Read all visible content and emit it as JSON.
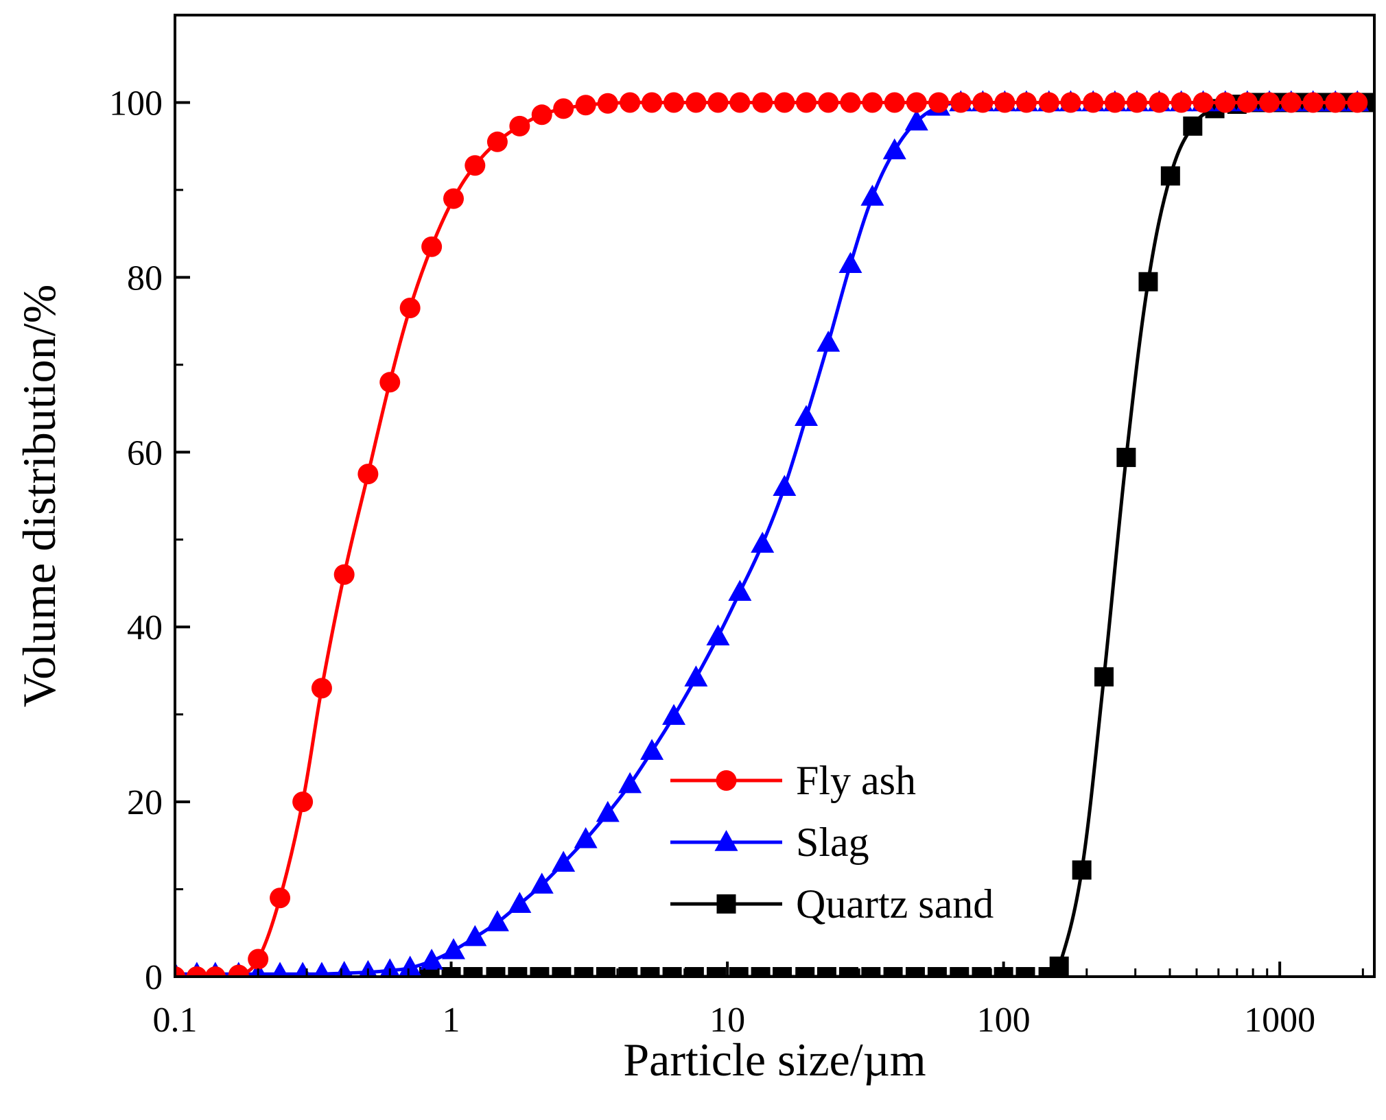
{
  "chart_data": {
    "type": "line",
    "title": "",
    "xlabel": "Particle size/µm",
    "ylabel": "Volume distribution/%",
    "xscale": "log",
    "xlim": [
      0.1,
      2200
    ],
    "ylim": [
      0,
      110
    ],
    "x_ticks": [
      0.1,
      1,
      10,
      100,
      1000
    ],
    "x_tick_labels": [
      "0.1",
      "1",
      "10",
      "100",
      "1000"
    ],
    "y_ticks": [
      0,
      20,
      40,
      60,
      80,
      100
    ],
    "y_tick_labels": [
      "0",
      "20",
      "40",
      "60",
      "80",
      "100"
    ],
    "legend_position": "lower-center",
    "series": [
      {
        "name": "Fly ash",
        "color": "#ff0000",
        "marker": "circle",
        "points": [
          [
            0.1,
            0
          ],
          [
            0.12,
            0
          ],
          [
            0.14,
            0
          ],
          [
            0.17,
            0.2
          ],
          [
            0.2,
            2
          ],
          [
            0.24,
            9
          ],
          [
            0.29,
            20
          ],
          [
            0.34,
            33
          ],
          [
            0.41,
            46
          ],
          [
            0.5,
            57.5
          ],
          [
            0.6,
            68
          ],
          [
            0.71,
            76.5
          ],
          [
            0.85,
            83.5
          ],
          [
            1.02,
            89
          ],
          [
            1.22,
            92.8
          ],
          [
            1.47,
            95.5
          ],
          [
            1.77,
            97.3
          ],
          [
            2.13,
            98.6
          ],
          [
            2.55,
            99.3
          ],
          [
            3.07,
            99.7
          ],
          [
            3.69,
            99.9
          ],
          [
            4.44,
            100
          ],
          [
            5.33,
            100
          ],
          [
            6.4,
            100
          ],
          [
            7.7,
            100
          ],
          [
            9.25,
            100
          ],
          [
            11.1,
            100
          ],
          [
            13.4,
            100
          ],
          [
            16.1,
            100
          ],
          [
            19.3,
            100
          ],
          [
            23.2,
            100
          ],
          [
            27.9,
            100
          ],
          [
            33.5,
            100
          ],
          [
            40.3,
            100
          ],
          [
            48.4,
            100
          ],
          [
            58.2,
            100
          ],
          [
            70,
            100
          ],
          [
            84.1,
            100
          ],
          [
            101,
            100
          ],
          [
            121,
            100
          ],
          [
            146,
            100
          ],
          [
            175,
            100
          ],
          [
            211,
            100
          ],
          [
            253,
            100
          ],
          [
            304,
            100
          ],
          [
            366,
            100
          ],
          [
            440,
            100
          ],
          [
            528,
            100
          ],
          [
            635,
            100
          ],
          [
            763,
            100
          ],
          [
            917,
            100
          ],
          [
            1100,
            100
          ],
          [
            1320,
            100
          ],
          [
            1590,
            100
          ],
          [
            1910,
            100
          ]
        ]
      },
      {
        "name": "Slag",
        "color": "#0000ff",
        "marker": "triangle",
        "points": [
          [
            0.1,
            0.3
          ],
          [
            0.12,
            0.3
          ],
          [
            0.14,
            0.3
          ],
          [
            0.17,
            0.3
          ],
          [
            0.2,
            0.3
          ],
          [
            0.24,
            0.3
          ],
          [
            0.29,
            0.3
          ],
          [
            0.34,
            0.3
          ],
          [
            0.41,
            0.4
          ],
          [
            0.5,
            0.5
          ],
          [
            0.6,
            0.7
          ],
          [
            0.71,
            1.0
          ],
          [
            0.85,
            1.8
          ],
          [
            1.02,
            3.0
          ],
          [
            1.22,
            4.5
          ],
          [
            1.47,
            6.2
          ],
          [
            1.77,
            8.3
          ],
          [
            2.13,
            10.5
          ],
          [
            2.55,
            13
          ],
          [
            3.07,
            15.7
          ],
          [
            3.69,
            18.7
          ],
          [
            4.44,
            22
          ],
          [
            5.33,
            25.8
          ],
          [
            6.4,
            29.8
          ],
          [
            7.7,
            34.2
          ],
          [
            9.25,
            38.9
          ],
          [
            11.1,
            44
          ],
          [
            13.4,
            49.5
          ],
          [
            16.1,
            56
          ],
          [
            19.3,
            64
          ],
          [
            23.2,
            72.5
          ],
          [
            27.9,
            81.5
          ],
          [
            33.5,
            89.2
          ],
          [
            40.3,
            94.5
          ],
          [
            48.4,
            97.8
          ],
          [
            58.2,
            99.5
          ],
          [
            70,
            100
          ],
          [
            84.1,
            100
          ],
          [
            101,
            100
          ],
          [
            121,
            100
          ],
          [
            146,
            100
          ],
          [
            175,
            100
          ],
          [
            211,
            100
          ],
          [
            253,
            100
          ],
          [
            304,
            100
          ],
          [
            366,
            100
          ],
          [
            440,
            100
          ],
          [
            528,
            100
          ],
          [
            635,
            100
          ],
          [
            763,
            100
          ],
          [
            917,
            100
          ],
          [
            1100,
            100
          ],
          [
            1320,
            100
          ],
          [
            1590,
            100
          ],
          [
            1910,
            100
          ]
        ]
      },
      {
        "name": "Quartz sand",
        "color": "#000000",
        "marker": "square",
        "points": [
          [
            0.83,
            0
          ],
          [
            1,
            0
          ],
          [
            1.2,
            0
          ],
          [
            1.45,
            0
          ],
          [
            1.74,
            0
          ],
          [
            2.09,
            0
          ],
          [
            2.51,
            0
          ],
          [
            3.02,
            0
          ],
          [
            3.63,
            0
          ],
          [
            4.37,
            0
          ],
          [
            5.25,
            0
          ],
          [
            6.31,
            0
          ],
          [
            7.59,
            0
          ],
          [
            9.12,
            0
          ],
          [
            11,
            0
          ],
          [
            13.2,
            0
          ],
          [
            15.8,
            0
          ],
          [
            19.1,
            0
          ],
          [
            22.9,
            0
          ],
          [
            27.5,
            0
          ],
          [
            33.1,
            0
          ],
          [
            39.8,
            0
          ],
          [
            47.9,
            0
          ],
          [
            57.5,
            0
          ],
          [
            69.2,
            0
          ],
          [
            83.2,
            0
          ],
          [
            100,
            0
          ],
          [
            120,
            0
          ],
          [
            145,
            0
          ],
          [
            159,
            1.2
          ],
          [
            192,
            12.2
          ],
          [
            231,
            34.3
          ],
          [
            278,
            59.4
          ],
          [
            334,
            79.5
          ],
          [
            402,
            91.6
          ],
          [
            484,
            97.3
          ],
          [
            582,
            99.3
          ],
          [
            700,
            99.8
          ],
          [
            841,
            100
          ],
          [
            1010,
            100
          ],
          [
            1220,
            100
          ],
          [
            1470,
            100
          ],
          [
            1770,
            100
          ],
          [
            2130,
            100
          ]
        ]
      }
    ]
  }
}
